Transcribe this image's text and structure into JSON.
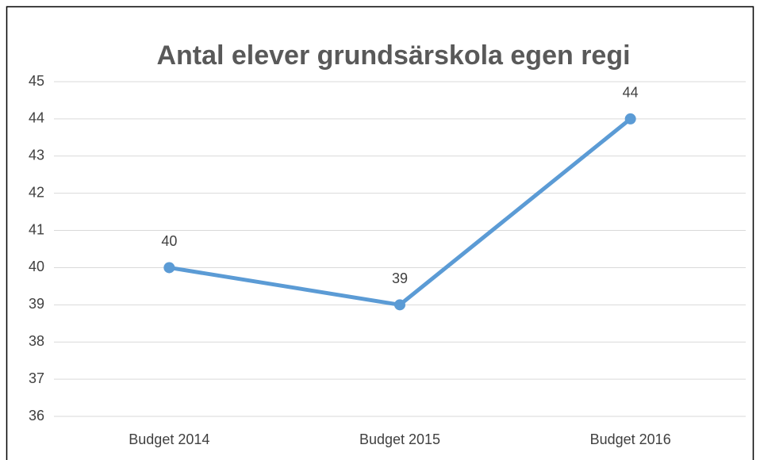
{
  "chart_data": {
    "type": "line",
    "title": "Antal elever grundsärskola egen regi",
    "categories": [
      "Budget 2014",
      "Budget 2015",
      "Budget 2016"
    ],
    "values": [
      40,
      39,
      44
    ],
    "color": "#5b9bd5",
    "ylim": [
      36,
      45
    ],
    "yticks": [
      36,
      37,
      38,
      39,
      40,
      41,
      42,
      43,
      44,
      45
    ],
    "grid": true,
    "data_labels": true
  }
}
